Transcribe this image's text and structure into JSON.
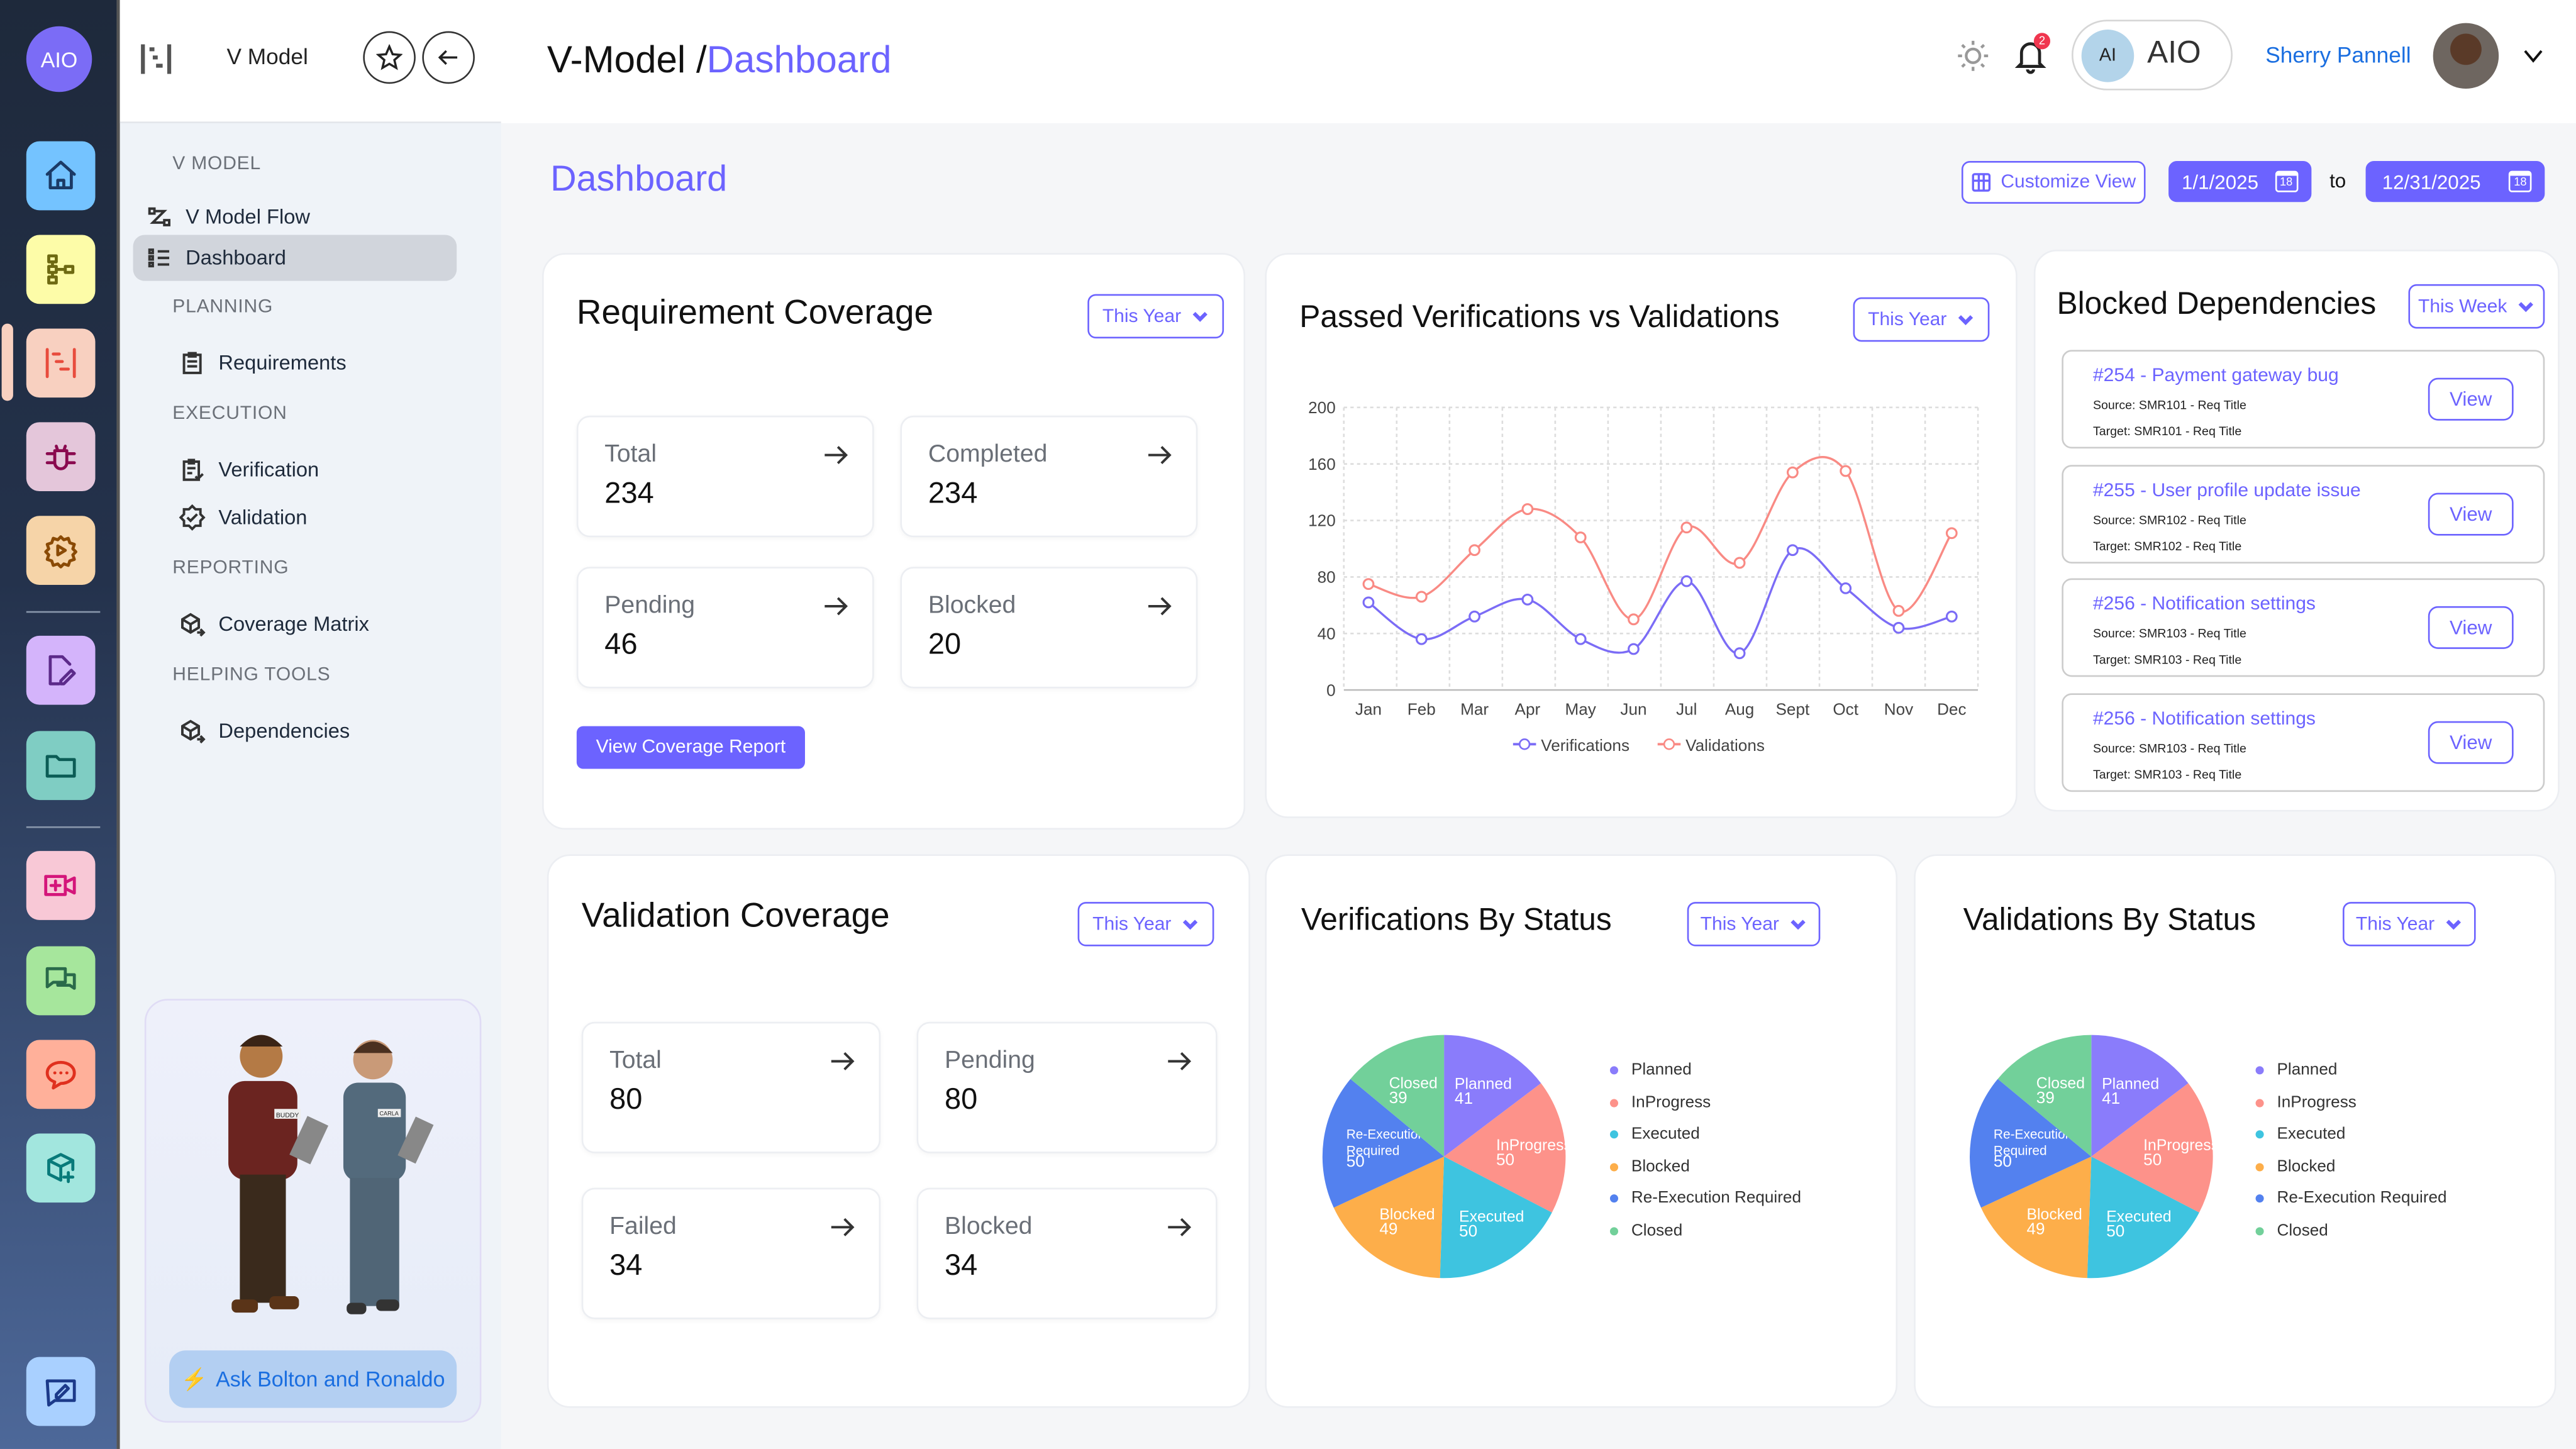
{
  "rail": {
    "logo": "AIO",
    "items": [
      {
        "icon": "home-icon",
        "bg": "#74c3ff",
        "stroke": "#1b3a66"
      },
      {
        "icon": "hierarchy-icon",
        "bg": "#fdfca8",
        "stroke": "#6e6a12"
      },
      {
        "icon": "v-model-icon",
        "bg": "#f8d0c0",
        "stroke": "#e84c3d"
      },
      {
        "icon": "bug-icon",
        "bg": "#e4c6da",
        "stroke": "#8a0a4f"
      },
      {
        "icon": "gear-play-icon",
        "bg": "#f6d4a8",
        "stroke": "#8a4a05"
      },
      {
        "icon": "file-edit-icon",
        "bg": "#d4b4fb",
        "stroke": "#5c2a8a"
      },
      {
        "icon": "folder-icon",
        "bg": "#7fcdc3",
        "stroke": "#0b5c55"
      },
      {
        "icon": "video-add-icon",
        "bg": "#f8c8d6",
        "stroke": "#d4157a"
      },
      {
        "icon": "chat-icon",
        "bg": "#a6e69c",
        "stroke": "#2a6a4a"
      },
      {
        "icon": "message-dots-icon",
        "bg": "#ffb09a",
        "stroke": "#e0301e"
      },
      {
        "icon": "cube-add-icon",
        "bg": "#a2e6de",
        "stroke": "#087a7a"
      },
      {
        "icon": "feedback-icon",
        "bg": "#a9d0ff",
        "stroke": "#1c3a8a"
      }
    ]
  },
  "sidebar": {
    "title": "V Model",
    "sections": [
      {
        "label": "V MODEL",
        "items": [
          {
            "label": "V Model Flow",
            "icon": "flow-icon"
          },
          {
            "label": "Dashboard",
            "icon": "list-icon",
            "active": true
          }
        ]
      },
      {
        "label": "PLANNING",
        "items": [
          {
            "label": "Requirements",
            "icon": "clipboard-icon"
          }
        ]
      },
      {
        "label": "EXECUTION",
        "items": [
          {
            "label": "Verification",
            "icon": "clipboard-check-icon"
          },
          {
            "label": "Validation",
            "icon": "badge-check-icon"
          }
        ]
      },
      {
        "label": "REPORTING",
        "items": [
          {
            "label": "Coverage Matrix",
            "icon": "cube-arrow-icon"
          }
        ]
      },
      {
        "label": "HELPING TOOLS",
        "items": [
          {
            "label": "Dependencies",
            "icon": "cube-arrow-icon"
          }
        ]
      }
    ],
    "assistant_button": "Ask Bolton and Ronaldo",
    "badge_left": "BUDDY",
    "badge_right": "CARLA"
  },
  "header": {
    "title_prefix": "V-Model /",
    "title_current": "Dashboard",
    "notifications": "2",
    "ai_badge": "AI",
    "ai_label": "AIO",
    "user_name": "Sherry Pannell"
  },
  "page": {
    "title": "Dashboard",
    "customize": "Customize View",
    "date_from": "1/1/2025",
    "date_sep": "to",
    "date_to": "12/31/2025",
    "cal_day": "18"
  },
  "req_coverage": {
    "title": "Requirement Coverage",
    "filter": "This Year",
    "stats": [
      {
        "label": "Total",
        "value": "234"
      },
      {
        "label": "Completed",
        "value": "234"
      },
      {
        "label": "Pending",
        "value": "46"
      },
      {
        "label": "Blocked",
        "value": "20"
      }
    ],
    "button": "View Coverage Report"
  },
  "val_coverage": {
    "title": "Validation Coverage",
    "filter": "This Year",
    "stats": [
      {
        "label": "Total",
        "value": "80"
      },
      {
        "label": "Pending",
        "value": "80"
      },
      {
        "label": "Failed",
        "value": "34"
      },
      {
        "label": "Blocked",
        "value": "34"
      }
    ]
  },
  "blocked": {
    "title": "Blocked Dependencies",
    "filter": "This Week",
    "items": [
      {
        "title": "#254 - Payment gateway bug",
        "source": "Source: SMR101 - Req Title",
        "target": "Target: SMR101 - Req Title",
        "button": "View"
      },
      {
        "title": "#255 - User profile update issue",
        "source": "Source: SMR102 - Req Title",
        "target": "Target: SMR102 - Req Title",
        "button": "View"
      },
      {
        "title": "#256 - Notification settings",
        "source": "Source: SMR103 - Req Title",
        "target": "Target: SMR103 - Req Title",
        "button": "View"
      },
      {
        "title": "#256 - Notification settings",
        "source": "Source: SMR103 - Req Title",
        "target": "Target: SMR103 - Req Title",
        "button": "View"
      }
    ]
  },
  "chart_data": [
    {
      "type": "line",
      "title": "Passed Verifications vs Validations",
      "filter": "This Year",
      "categories": [
        "Jan",
        "Feb",
        "Mar",
        "Apr",
        "May",
        "Jun",
        "Jul",
        "Aug",
        "Sept",
        "Oct",
        "Nov",
        "Dec"
      ],
      "ylim": [
        0,
        200
      ],
      "yticks": [
        0,
        40,
        80,
        120,
        160,
        200
      ],
      "grid": true,
      "legend": "bottom",
      "series": [
        {
          "name": "Verifications",
          "color": "#7b6cf6",
          "values": [
            62,
            36,
            52,
            64,
            36,
            29,
            77,
            26,
            99,
            72,
            44,
            52
          ]
        },
        {
          "name": "Validations",
          "color": "#f98a84",
          "values": [
            75,
            66,
            99,
            128,
            108,
            50,
            115,
            90,
            154,
            155,
            56,
            111
          ]
        }
      ]
    },
    {
      "type": "pie",
      "title": "Verifications By Status",
      "filter": "This Year",
      "legend": "right",
      "labels": [
        "Planned",
        "InProgress",
        "Executed",
        "Blocked",
        "Re-Execution Required",
        "Closed"
      ],
      "values": [
        41,
        50,
        50,
        49,
        50,
        39
      ],
      "colors": [
        "#8a7cfb",
        "#fd928a",
        "#3ec4e0",
        "#fdae4a",
        "#5381ef",
        "#72d09a"
      ]
    },
    {
      "type": "pie",
      "title": "Validations By Status",
      "filter": "This Year",
      "legend": "right",
      "labels": [
        "Planned",
        "InProgress",
        "Executed",
        "Blocked",
        "Re-Execution Required",
        "Closed"
      ],
      "values": [
        41,
        50,
        50,
        49,
        50,
        39
      ],
      "colors": [
        "#8a7cfb",
        "#fd928a",
        "#3ec4e0",
        "#fdae4a",
        "#5381ef",
        "#72d09a"
      ]
    }
  ]
}
